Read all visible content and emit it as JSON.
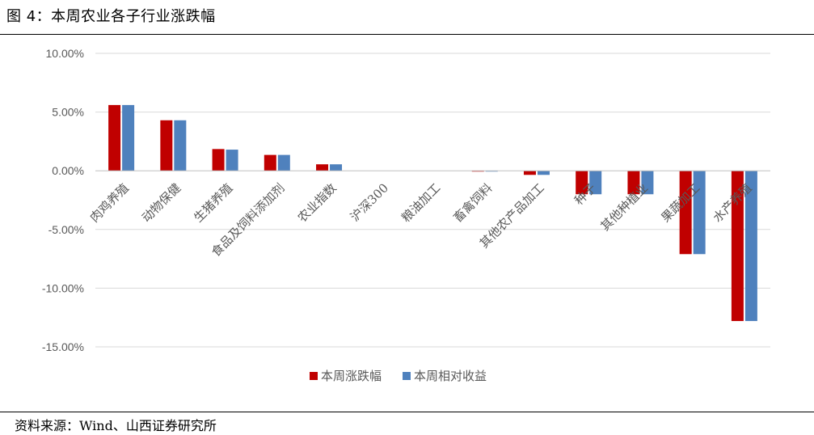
{
  "figure": {
    "title": "图 4：本周农业各子行业涨跌幅",
    "source": "资料来源：Wind、山西证券研究所"
  },
  "chart_data": {
    "type": "bar",
    "categories": [
      "肉鸡养殖",
      "动物保健",
      "生猪养殖",
      "食品及饲料添加剂",
      "农业指数",
      "沪深300",
      "粮油加工",
      "畜禽饲料",
      "其他农产品加工",
      "种子",
      "其他种植业",
      "果蔬加工",
      "水产养殖"
    ],
    "series": [
      {
        "name": "本周涨跌幅",
        "color": "#C00000",
        "values": [
          5.6,
          4.3,
          1.85,
          1.35,
          0.55,
          0.0,
          0.0,
          -0.05,
          -0.35,
          -2.0,
          -2.0,
          -7.1,
          -12.8
        ]
      },
      {
        "name": "本周相对收益",
        "color": "#4F81BD",
        "values": [
          5.6,
          4.3,
          1.8,
          1.35,
          0.55,
          0.0,
          0.0,
          -0.05,
          -0.35,
          -2.0,
          -2.0,
          -7.1,
          -12.8
        ]
      }
    ],
    "ylim": [
      -15,
      10
    ],
    "yticks": [
      10,
      5,
      0,
      -5,
      -10,
      -15
    ],
    "ytick_labels": [
      "10.00%",
      "5.00%",
      "0.00%",
      "-5.00%",
      "-10.00%",
      "-15.00%"
    ],
    "grid": true,
    "legend_position": "bottom"
  }
}
